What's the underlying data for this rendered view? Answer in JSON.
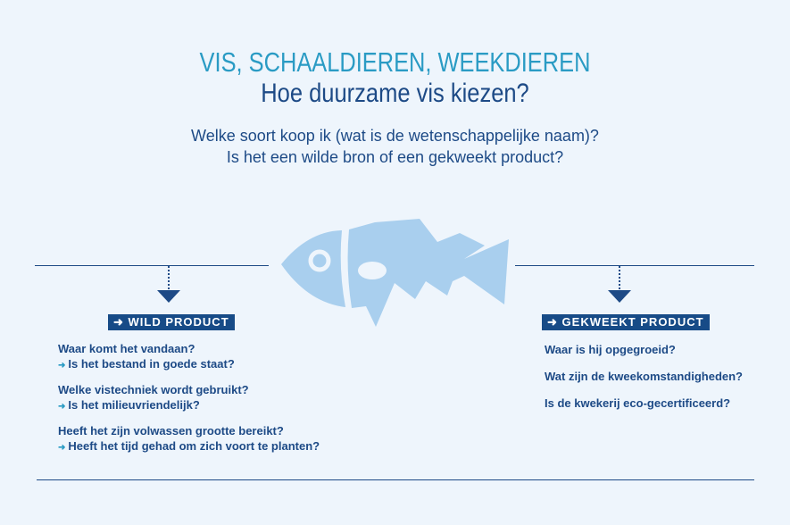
{
  "header": {
    "title": "VIS, SCHAALDIEREN, WEEKDIEREN",
    "subtitle": "Hoe duurzame vis kiezen?",
    "question1": "Welke soort koop ik (wat is de wetenschappelijke naam)?",
    "question2": "Is het een wilde bron of een gekweekt product?"
  },
  "wild": {
    "label": "WILD PRODUCT",
    "items": [
      {
        "q": "Waar komt het vandaan?",
        "a": "Is het bestand in goede staat?"
      },
      {
        "q": "Welke vistechniek wordt gebruikt?",
        "a": "Is het milieuvriendelijk?"
      },
      {
        "q": "Heeft het zijn volwassen grootte bereikt?",
        "a": "Heeft het tijd gehad om zich voort te planten?"
      }
    ]
  },
  "farmed": {
    "label": "GEKWEEKT PRODUCT",
    "items": [
      "Waar is hij opgegroeid?",
      "Wat zijn de kweekomstandigheden?",
      "Is de kwekerij eco-gecertificeerd?"
    ]
  },
  "icons": {
    "fish": "fish-icon",
    "arrow": "arrow-right-icon"
  },
  "colors": {
    "accent": "#2a9bc4",
    "navy": "#1d4a86",
    "fish": "#a9cfee",
    "background": "#eef5fc"
  }
}
